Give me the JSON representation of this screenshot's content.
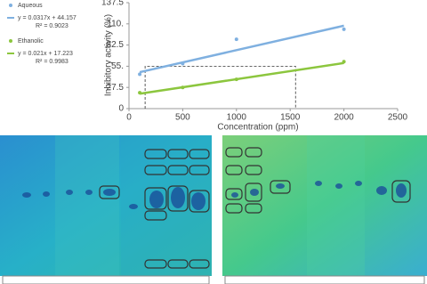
{
  "chart_data": {
    "type": "scatter",
    "x_label": "Concentration (ppm)",
    "y_label": "Inhibitory activity (%)",
    "series": [
      {
        "name": "Aqueous",
        "color": "#7fb0e0",
        "x": [
          100,
          500,
          1000,
          2000
        ],
        "values": [
          44.7,
          58.4,
          90,
          103
        ],
        "equation": "y = 0.0317x + 44.157",
        "r2": "R² = 0.9023",
        "trend_x": [
          100,
          2000
        ],
        "trend_values": [
          47.3,
          107.6
        ]
      },
      {
        "name": "Ethanolic",
        "color": "#8cc63e",
        "x": [
          100,
          500,
          1000,
          2000
        ],
        "values": [
          20.6,
          27.5,
          38,
          61
        ],
        "equation": "y = 0.021x + 17.223",
        "r2": "R² = 0.9983",
        "trend_x": [
          100,
          2000
        ],
        "trend_values": [
          19.3,
          59.2
        ]
      }
    ],
    "guide": {
      "y": 55,
      "x": [
        150,
        1550
      ]
    },
    "xlim": [
      0,
      2500
    ],
    "xticks": [
      0,
      500,
      1000,
      1500,
      2000,
      2500
    ],
    "ylim": [
      0,
      137.5
    ],
    "yticks": [
      0,
      27.5,
      {
        "value": 55,
        "label": "55."
      },
      82.5,
      {
        "value": 110,
        "label": "110."
      },
      137.5
    ]
  }
}
